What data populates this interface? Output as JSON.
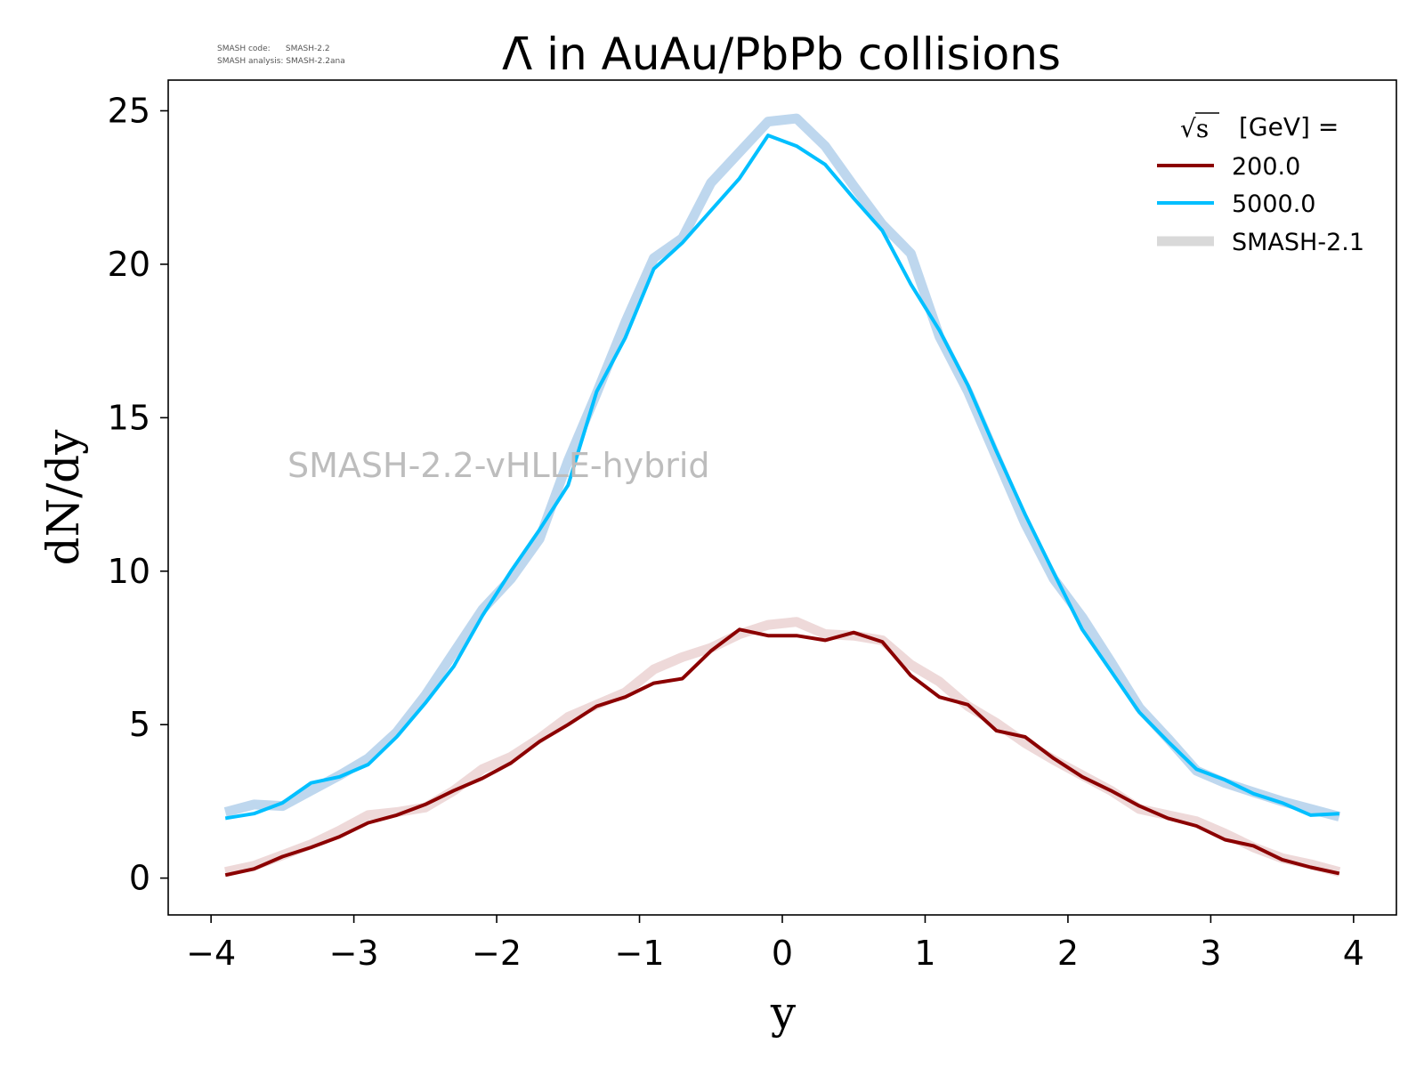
{
  "meta": {
    "code_line": "SMASH code:      SMASH-2.2",
    "analysis_line": "SMASH analysis: SMASH-2.2ana"
  },
  "chart_data": {
    "type": "line",
    "title": "Λ̄ in AuAu/PbPb collisions",
    "xlabel": "y",
    "ylabel": "dN/dy",
    "xlim": [
      -4.3,
      4.3
    ],
    "ylim": [
      -1.2,
      26.0
    ],
    "xticks": [
      -4,
      -3,
      -2,
      -1,
      0,
      1,
      2,
      3,
      4
    ],
    "xtick_labels": [
      "−4",
      "−3",
      "−2",
      "−1",
      "0",
      "1",
      "2",
      "3",
      "4"
    ],
    "yticks": [
      0,
      5,
      10,
      15,
      20,
      25
    ],
    "ytick_labels": [
      "0",
      "5",
      "10",
      "15",
      "20",
      "25"
    ],
    "grid": false,
    "watermark": "SMASH-2.2-vHLLE-hybrid",
    "legend": {
      "placement": "top-right",
      "title_sqrt": "√s",
      "title_rest": "[GeV] =",
      "entries": [
        "200.0",
        "5000.0",
        "SMASH-2.1"
      ]
    },
    "x": [
      -3.9,
      -3.7,
      -3.5,
      -3.3,
      -3.1,
      -2.9,
      -2.7,
      -2.5,
      -2.3,
      -2.1,
      -1.9,
      -1.7,
      -1.5,
      -1.3,
      -1.1,
      -0.9,
      -0.7,
      -0.5,
      -0.3,
      -0.1,
      0.1,
      0.3,
      0.5,
      0.7,
      0.9,
      1.1,
      1.3,
      1.5,
      1.7,
      1.9,
      2.1,
      2.3,
      2.5,
      2.7,
      2.9,
      3.1,
      3.3,
      3.5,
      3.7,
      3.9
    ],
    "series": [
      {
        "name": "200.0",
        "color": "#8b0000",
        "role": "main",
        "values": [
          0.1,
          0.3,
          0.7,
          1.0,
          1.35,
          1.8,
          2.05,
          2.4,
          2.85,
          3.25,
          3.75,
          4.45,
          5.0,
          5.6,
          5.9,
          6.35,
          6.5,
          7.4,
          8.1,
          7.9,
          7.9,
          7.75,
          8.0,
          7.7,
          6.6,
          5.9,
          5.65,
          4.8,
          4.6,
          3.9,
          3.3,
          2.85,
          2.35,
          1.95,
          1.7,
          1.25,
          1.05,
          0.6,
          0.35,
          0.15
        ]
      },
      {
        "name": "5000.0",
        "color": "#00bfff",
        "role": "main",
        "values": [
          1.95,
          2.1,
          2.45,
          3.1,
          3.3,
          3.7,
          4.6,
          5.7,
          6.9,
          8.55,
          10.0,
          11.35,
          12.8,
          15.85,
          17.6,
          19.85,
          20.7,
          21.75,
          22.8,
          24.2,
          23.85,
          23.25,
          22.15,
          21.1,
          19.35,
          17.85,
          16.05,
          13.9,
          11.85,
          9.95,
          8.1,
          6.75,
          5.4,
          4.45,
          3.55,
          3.2,
          2.75,
          2.45,
          2.05,
          2.1
        ]
      },
      {
        "name": "SMASH-2.1",
        "color": "#8b0000",
        "role": "reference",
        "values": [
          0.2,
          0.4,
          0.75,
          1.1,
          1.55,
          2.05,
          2.15,
          2.3,
          2.85,
          3.55,
          3.95,
          4.55,
          5.25,
          5.65,
          6.05,
          6.8,
          7.2,
          7.5,
          7.95,
          8.25,
          8.35,
          7.95,
          7.9,
          7.75,
          6.95,
          6.4,
          5.6,
          5.05,
          4.4,
          3.85,
          3.35,
          2.85,
          2.25,
          2.05,
          1.85,
          1.45,
          1.0,
          0.65,
          0.45,
          0.2
        ]
      },
      {
        "name": "SMASH-2.1",
        "color": "#b7d3ec",
        "role": "reference",
        "values": [
          2.15,
          2.4,
          2.35,
          2.85,
          3.35,
          3.9,
          4.75,
          5.95,
          7.35,
          8.75,
          9.75,
          11.05,
          13.6,
          15.8,
          18.1,
          20.2,
          20.85,
          22.65,
          23.65,
          24.65,
          24.75,
          23.85,
          22.55,
          21.3,
          20.35,
          17.65,
          15.85,
          13.7,
          11.55,
          9.75,
          8.5,
          7.05,
          5.55,
          4.55,
          3.5,
          3.1,
          2.8,
          2.5,
          2.25,
          2.0
        ]
      }
    ]
  }
}
